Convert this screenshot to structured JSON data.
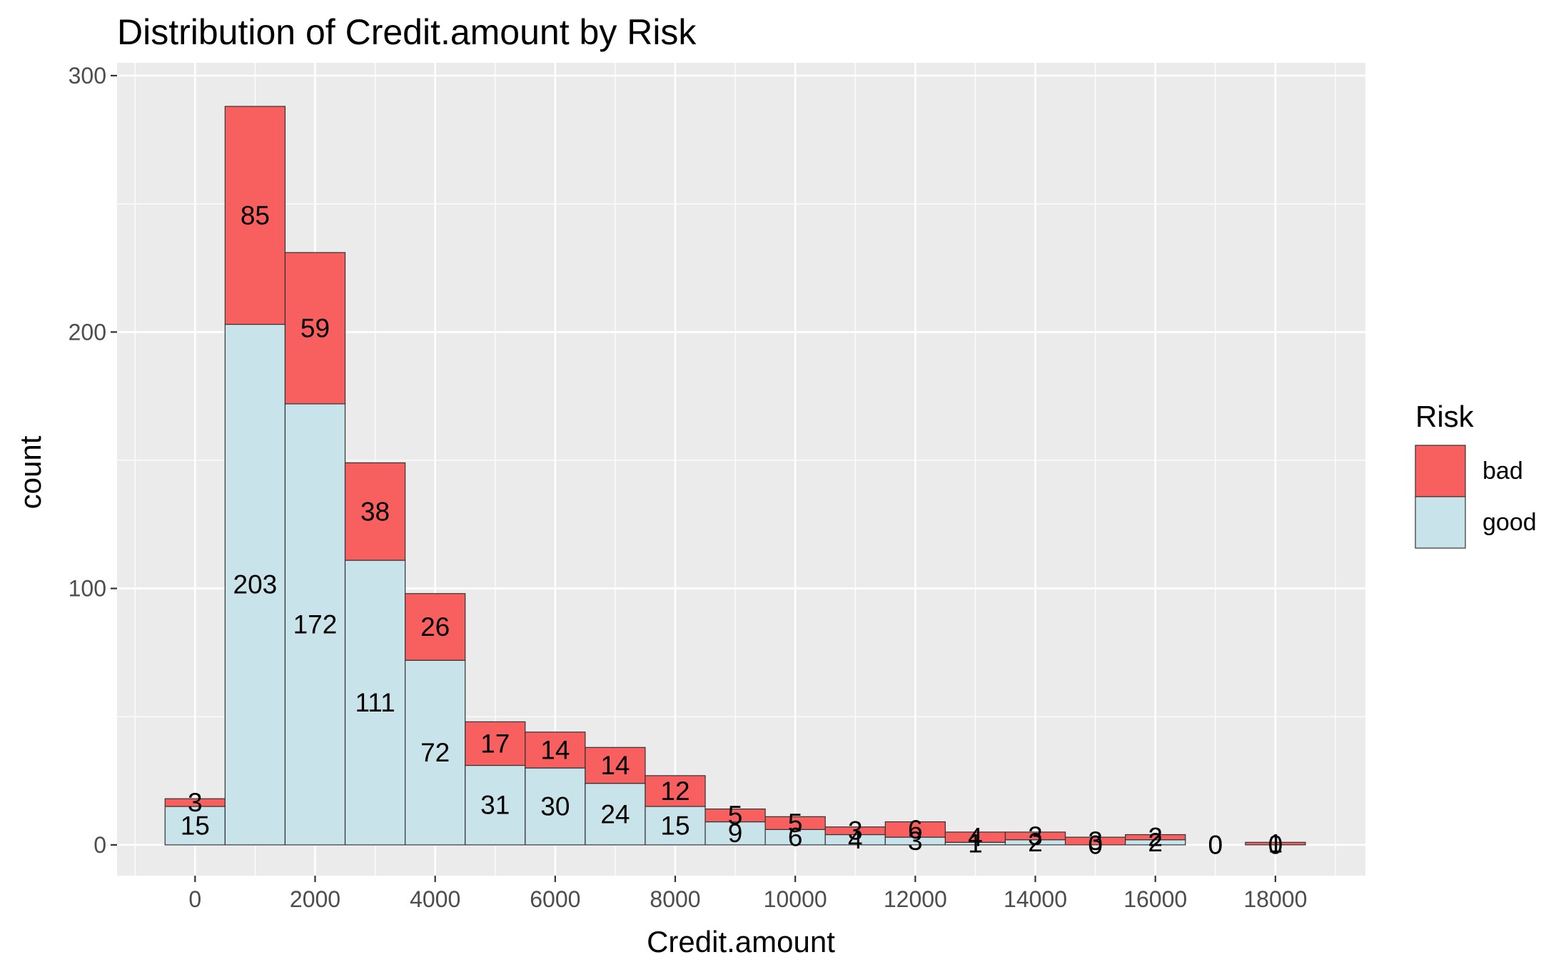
{
  "chart_data": {
    "type": "bar",
    "subtype": "stacked-histogram",
    "title": "Distribution of Credit.amount by Risk",
    "xlabel": "Credit.amount",
    "ylabel": "count",
    "xlim": [
      -1300,
      19500
    ],
    "ylim": [
      -12,
      305
    ],
    "x_ticks": [
      0,
      2000,
      4000,
      6000,
      8000,
      10000,
      12000,
      14000,
      16000,
      18000
    ],
    "y_ticks": [
      0,
      100,
      200,
      300
    ],
    "bin_width": 1000,
    "bin_centers": [
      0,
      1000,
      2000,
      3000,
      4000,
      5000,
      6000,
      7000,
      8000,
      9000,
      10000,
      11000,
      12000,
      13000,
      14000,
      15000,
      16000,
      17000,
      18000
    ],
    "series": [
      {
        "name": "good",
        "color": "#C9E3EB",
        "values": [
          15,
          203,
          172,
          111,
          72,
          31,
          30,
          24,
          15,
          9,
          6,
          4,
          3,
          1,
          2,
          0,
          2,
          0,
          0
        ]
      },
      {
        "name": "bad",
        "color": "#F8605F",
        "values": [
          3,
          85,
          59,
          38,
          26,
          17,
          14,
          14,
          12,
          5,
          5,
          3,
          6,
          4,
          3,
          3,
          2,
          0,
          1
        ]
      }
    ],
    "legend": {
      "title": "Risk",
      "position": "right"
    },
    "grid": true,
    "panel_background": "#EBEBEB",
    "grid_color": "#FFFFFF"
  }
}
